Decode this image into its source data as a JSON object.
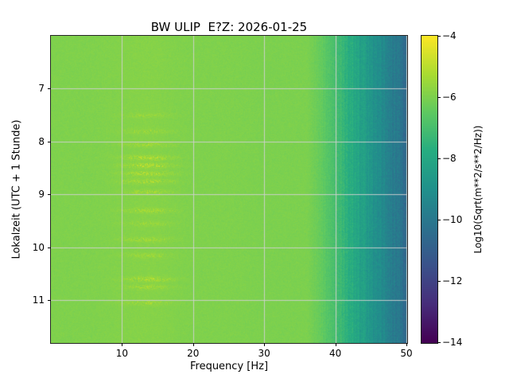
{
  "chart_data": {
    "type": "heatmap",
    "title": "BW ULIP  E?Z: 2026-01-25",
    "xlabel": "Frequency [Hz]",
    "ylabel": "Lokalzeit (UTC + 1 Stunde)",
    "x_range": [
      0,
      50
    ],
    "x_ticks": [
      10,
      20,
      30,
      40,
      50
    ],
    "y_range": [
      6.0,
      11.8
    ],
    "y_ticks": [
      7,
      8,
      9,
      10,
      11
    ],
    "y_axis_direction": "time increases downward",
    "grid": true,
    "colormap": "viridis",
    "colormap_stops": [
      "#440154",
      "#472d7b",
      "#3b528b",
      "#2c728e",
      "#21918c",
      "#27ad81",
      "#5ec962",
      "#aadc32",
      "#fde725"
    ],
    "grid_color": "#d0d0d0",
    "colorbar": {
      "label": "Log10(Sqrt(m**2/s**2/Hz))",
      "ticks": [
        -4,
        -6,
        -8,
        -10,
        -12,
        -14
      ],
      "vmin": -14,
      "vmax": -4
    },
    "spectrum_profile": {
      "freqs_hz": [
        0,
        5,
        10,
        15,
        20,
        25,
        30,
        34,
        36,
        38,
        40,
        42,
        44,
        46,
        48,
        50
      ],
      "log10_values": [
        -5.95,
        -5.95,
        -5.9,
        -5.9,
        -5.95,
        -5.95,
        -6.0,
        -6.0,
        -6.0,
        -6.4,
        -7.0,
        -7.7,
        -8.4,
        -9.1,
        -9.8,
        -10.5
      ]
    },
    "transient_events": {
      "freq_band_hz": [
        9,
        18
      ],
      "times": [
        7.5,
        7.8,
        8.05,
        8.3,
        8.45,
        8.6,
        8.75,
        8.95,
        9.3,
        9.55,
        9.85,
        10.15,
        10.6,
        10.75,
        11.05
      ],
      "strengths": [
        0.35,
        0.4,
        0.5,
        0.85,
        0.9,
        0.8,
        0.7,
        0.55,
        0.6,
        0.4,
        0.55,
        0.4,
        0.7,
        0.5,
        0.45
      ]
    }
  }
}
